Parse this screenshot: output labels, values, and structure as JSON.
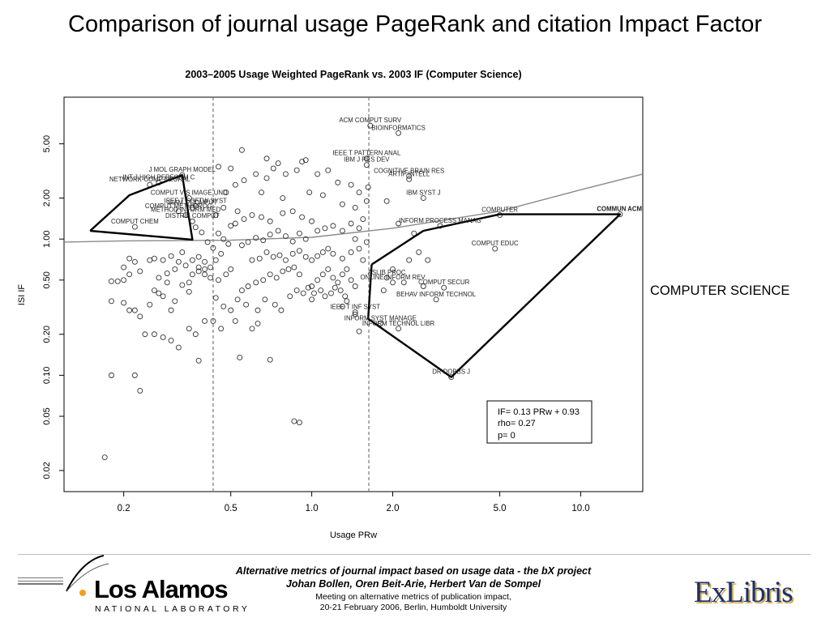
{
  "slide": {
    "title": "Comparison of journal usage PageRank and citation Impact Factor",
    "side_label": "COMPUTER SCIENCE"
  },
  "footer": {
    "title_line1": "Alternative metrics of journal impact based on usage data - the bX project",
    "authors": "Johan Bollen, Oren Beit-Arie, Herbert Van de Sompel",
    "meeting_line1": "Meeting on alternative metrics of publication impact,",
    "meeting_line2": "20-21 February 2006, Berlin, Humboldt University"
  },
  "logos": {
    "lanl_name": "Los Alamos",
    "lanl_sub": "NATIONAL LABORATORY",
    "exlibris": "ExLibris"
  },
  "colors": {
    "points": "#333333",
    "hull": "#000000",
    "fit_curve": "#8a8a8a",
    "dashed_lines": "#777777"
  },
  "chart_data": {
    "type": "scatter",
    "title": "2003–2005 Usage Weighted PageRank vs. 2003 IF (Computer Science)",
    "xlabel": "Usage PRw",
    "ylabel": "ISI IF",
    "x_scale": "log",
    "y_scale": "log",
    "xlim": [
      0.12,
      17
    ],
    "ylim": [
      0.014,
      11
    ],
    "x_ticks": [
      0.2,
      0.5,
      1.0,
      2.0,
      5.0,
      10.0
    ],
    "x_tick_labels": [
      "0.2",
      "0.5",
      "1.0",
      "2.0",
      "5.0",
      "10.0"
    ],
    "y_ticks": [
      0.02,
      0.05,
      0.1,
      0.2,
      0.5,
      1.0,
      2.0,
      5.0
    ],
    "y_tick_labels": [
      "0.02",
      "0.05",
      "0.10",
      "0.20",
      "0.50",
      "1.00",
      "2.00",
      "5.00"
    ],
    "vlines": [
      0.43,
      1.63
    ],
    "fit_line_points": [
      [
        0.12,
        0.95
      ],
      [
        0.2,
        0.97
      ],
      [
        0.5,
        0.98
      ],
      [
        1.0,
        1.03
      ],
      [
        2.0,
        1.2
      ],
      [
        5.0,
        1.6
      ],
      [
        10.0,
        2.3
      ],
      [
        17.0,
        3.0
      ]
    ],
    "stats_box": [
      "IF= 0.13 PRw +  0.93",
      "rho= 0.27",
      "p= 0"
    ],
    "hull_low": [
      [
        0.15,
        1.15
      ],
      [
        0.21,
        2.1
      ],
      [
        0.33,
        2.95
      ],
      [
        0.36,
        0.99
      ],
      [
        0.15,
        1.15
      ]
    ],
    "hull_high": [
      [
        1.67,
        0.65
      ],
      [
        2.6,
        1.15
      ],
      [
        5.0,
        1.52
      ],
      [
        14.0,
        1.52
      ],
      [
        3.3,
        0.097
      ],
      [
        1.62,
        0.26
      ],
      [
        1.67,
        0.65
      ]
    ],
    "labeled_points": [
      {
        "label": "ACM COMPUT SURV",
        "x": 1.65,
        "y": 6.8
      },
      {
        "label": "BIOINFORMATICS",
        "x": 2.1,
        "y": 6.0
      },
      {
        "label": "IEEE T PATTERN ANAL",
        "x": 1.6,
        "y": 3.9
      },
      {
        "label": "IBM J RES DEV",
        "x": 1.6,
        "y": 3.5
      },
      {
        "label": "COGNITIVE BRAIN RES",
        "x": 2.3,
        "y": 2.9
      },
      {
        "label": "ARTIF INTELL",
        "x": 2.3,
        "y": 2.75
      },
      {
        "label": "IBM SYST J",
        "x": 2.6,
        "y": 2.0
      },
      {
        "label": "COMPUTER",
        "x": 5.0,
        "y": 1.5
      },
      {
        "label": "COMMUN ACM",
        "x": 14.0,
        "y": 1.52
      },
      {
        "label": "INFORM PROCESS MANAG",
        "x": 3.0,
        "y": 1.25
      },
      {
        "label": "COMPUT EDUC",
        "x": 4.8,
        "y": 0.85
      },
      {
        "label": "ASLIB PROC",
        "x": 1.9,
        "y": 0.52
      },
      {
        "label": "ONLINE INFORM REV",
        "x": 2.0,
        "y": 0.48
      },
      {
        "label": "COMPUT SECUR",
        "x": 3.1,
        "y": 0.44
      },
      {
        "label": "BEHAV INFORM TECHNOL",
        "x": 2.9,
        "y": 0.36
      },
      {
        "label": "IEEE T INF SYST",
        "x": 1.45,
        "y": 0.29
      },
      {
        "label": "INFORM SYST MANAGE",
        "x": 1.8,
        "y": 0.24
      },
      {
        "label": "INFORM TECHNOL LIBR",
        "x": 2.1,
        "y": 0.22
      },
      {
        "label": "DR DOBBS J",
        "x": 3.3,
        "y": 0.097
      },
      {
        "label": "J MOL GRAPH MODEL",
        "x": 0.33,
        "y": 2.95
      },
      {
        "label": "INT J HIGH PERFORM C",
        "x": 0.27,
        "y": 2.6
      },
      {
        "label": "NETWORK-COMP NEURAL",
        "x": 0.25,
        "y": 2.5
      },
      {
        "label": "COMPUT VIS IMAGE UND",
        "x": 0.35,
        "y": 2.0
      },
      {
        "label": "IEEE T SOFTW SYST",
        "x": 0.37,
        "y": 1.75
      },
      {
        "label": "SIAM J COMPUT",
        "x": 0.36,
        "y": 1.7
      },
      {
        "label": "COMPUT METH PROG",
        "x": 0.32,
        "y": 1.6
      },
      {
        "label": "METHOD INFORM MED",
        "x": 0.34,
        "y": 1.5
      },
      {
        "label": "DISTRIB COMPUT",
        "x": 0.36,
        "y": 1.35
      },
      {
        "label": "COMPUT CHEM",
        "x": 0.22,
        "y": 1.23
      }
    ],
    "other_points": [
      [
        0.17,
        0.025
      ],
      [
        0.18,
        0.49
      ],
      [
        0.19,
        0.49
      ],
      [
        0.2,
        0.5
      ],
      [
        0.21,
        0.72
      ],
      [
        0.22,
        0.68
      ],
      [
        0.2,
        0.62
      ],
      [
        0.21,
        0.55
      ],
      [
        0.23,
        0.58
      ],
      [
        0.18,
        0.35
      ],
      [
        0.2,
        0.34
      ],
      [
        0.21,
        0.3
      ],
      [
        0.22,
        0.3
      ],
      [
        0.23,
        0.27
      ],
      [
        0.25,
        0.33
      ],
      [
        0.26,
        0.42
      ],
      [
        0.27,
        0.4
      ],
      [
        0.28,
        0.38
      ],
      [
        0.3,
        0.3
      ],
      [
        0.31,
        0.35
      ],
      [
        0.29,
        0.48
      ],
      [
        0.33,
        0.46
      ],
      [
        0.35,
        0.48
      ],
      [
        0.36,
        0.55
      ],
      [
        0.38,
        0.58
      ],
      [
        0.4,
        0.6
      ],
      [
        0.42,
        0.52
      ],
      [
        0.45,
        0.5
      ],
      [
        0.48,
        0.55
      ],
      [
        0.5,
        0.6
      ],
      [
        0.26,
        0.72
      ],
      [
        0.28,
        0.7
      ],
      [
        0.3,
        0.75
      ],
      [
        0.32,
        0.68
      ],
      [
        0.34,
        0.64
      ],
      [
        0.36,
        0.7
      ],
      [
        0.38,
        0.62
      ],
      [
        0.4,
        0.68
      ],
      [
        0.44,
        0.7
      ],
      [
        0.46,
        0.78
      ],
      [
        0.24,
        0.2
      ],
      [
        0.26,
        0.2
      ],
      [
        0.28,
        0.19
      ],
      [
        0.3,
        0.18
      ],
      [
        0.32,
        0.16
      ],
      [
        0.35,
        0.22
      ],
      [
        0.37,
        0.2
      ],
      [
        0.4,
        0.25
      ],
      [
        0.43,
        0.25
      ],
      [
        0.46,
        0.22
      ],
      [
        0.18,
        0.1
      ],
      [
        0.22,
        0.1
      ],
      [
        0.23,
        0.077
      ],
      [
        0.38,
        0.128
      ],
      [
        0.52,
        0.25
      ],
      [
        0.54,
        0.135
      ],
      [
        0.6,
        0.22
      ],
      [
        0.63,
        0.24
      ],
      [
        0.7,
        0.13
      ],
      [
        0.86,
        0.046
      ],
      [
        0.55,
        0.42
      ],
      [
        0.58,
        0.45
      ],
      [
        0.62,
        0.48
      ],
      [
        0.66,
        0.5
      ],
      [
        0.7,
        0.55
      ],
      [
        0.74,
        0.52
      ],
      [
        0.78,
        0.58
      ],
      [
        0.82,
        0.6
      ],
      [
        0.86,
        0.62
      ],
      [
        0.9,
        0.55
      ],
      [
        0.6,
        0.7
      ],
      [
        0.64,
        0.72
      ],
      [
        0.68,
        0.8
      ],
      [
        0.72,
        0.74
      ],
      [
        0.76,
        0.76
      ],
      [
        0.8,
        0.7
      ],
      [
        0.85,
        0.78
      ],
      [
        0.9,
        0.82
      ],
      [
        0.95,
        0.74
      ],
      [
        1.0,
        0.7
      ],
      [
        0.55,
        0.9
      ],
      [
        0.58,
        0.95
      ],
      [
        0.62,
        1.02
      ],
      [
        0.66,
        0.98
      ],
      [
        0.7,
        1.08
      ],
      [
        0.75,
        1.15
      ],
      [
        0.8,
        1.05
      ],
      [
        0.85,
        0.96
      ],
      [
        0.9,
        1.1
      ],
      [
        0.95,
        1.0
      ],
      [
        0.5,
        1.25
      ],
      [
        0.52,
        1.3
      ],
      [
        0.56,
        1.4
      ],
      [
        0.6,
        1.5
      ],
      [
        0.65,
        1.45
      ],
      [
        0.7,
        1.35
      ],
      [
        0.78,
        1.55
      ],
      [
        0.85,
        1.6
      ],
      [
        0.92,
        1.45
      ],
      [
        1.0,
        1.35
      ],
      [
        0.48,
        2.2
      ],
      [
        0.52,
        2.5
      ],
      [
        0.56,
        2.7
      ],
      [
        0.62,
        3.0
      ],
      [
        0.68,
        2.8
      ],
      [
        0.72,
        3.3
      ],
      [
        0.8,
        3.0
      ],
      [
        0.88,
        3.2
      ],
      [
        0.95,
        3.8
      ],
      [
        1.05,
        3.0
      ],
      [
        0.55,
        4.5
      ],
      [
        0.68,
        3.9
      ],
      [
        0.75,
        3.6
      ],
      [
        0.92,
        3.7
      ],
      [
        0.45,
        3.4
      ],
      [
        0.5,
        3.3
      ],
      [
        0.65,
        2.2
      ],
      [
        0.78,
        2.0
      ],
      [
        0.98,
        2.2
      ],
      [
        1.1,
        2.1
      ],
      [
        1.0,
        0.45
      ],
      [
        1.05,
        0.5
      ],
      [
        1.1,
        0.55
      ],
      [
        1.15,
        0.6
      ],
      [
        1.2,
        0.52
      ],
      [
        1.25,
        0.48
      ],
      [
        1.3,
        0.55
      ],
      [
        1.35,
        0.6
      ],
      [
        1.4,
        0.5
      ],
      [
        1.45,
        0.45
      ],
      [
        1.05,
        0.75
      ],
      [
        1.1,
        0.8
      ],
      [
        1.15,
        0.85
      ],
      [
        1.2,
        0.78
      ],
      [
        1.3,
        0.72
      ],
      [
        1.4,
        0.8
      ],
      [
        1.5,
        0.85
      ],
      [
        1.55,
        0.7
      ],
      [
        1.6,
        0.95
      ],
      [
        1.45,
        1.0
      ],
      [
        1.05,
        1.15
      ],
      [
        1.12,
        1.2
      ],
      [
        1.2,
        1.25
      ],
      [
        1.3,
        1.15
      ],
      [
        1.4,
        1.3
      ],
      [
        1.5,
        1.2
      ],
      [
        1.55,
        1.4
      ],
      [
        1.3,
        1.8
      ],
      [
        1.45,
        1.7
      ],
      [
        1.6,
        1.9
      ],
      [
        1.15,
        3.2
      ],
      [
        1.25,
        2.6
      ],
      [
        1.4,
        2.5
      ],
      [
        1.5,
        2.2
      ],
      [
        1.62,
        2.4
      ],
      [
        1.3,
        0.32
      ],
      [
        1.35,
        0.35
      ],
      [
        1.45,
        0.28
      ],
      [
        1.5,
        0.21
      ],
      [
        1.0,
        0.36
      ],
      [
        1.9,
        1.9
      ],
      [
        2.1,
        1.3
      ],
      [
        2.4,
        1.1
      ],
      [
        2.5,
        0.8
      ],
      [
        2.3,
        0.7
      ],
      [
        2.0,
        0.6
      ],
      [
        2.6,
        0.45
      ],
      [
        2.2,
        0.48
      ],
      [
        1.85,
        0.42
      ],
      [
        2.7,
        0.7
      ],
      [
        0.9,
        0.045
      ],
      [
        0.4,
        0.55
      ],
      [
        0.42,
        0.62
      ],
      [
        0.38,
        0.74
      ],
      [
        0.33,
        0.8
      ],
      [
        0.31,
        0.6
      ],
      [
        0.27,
        0.52
      ],
      [
        0.25,
        0.7
      ],
      [
        0.29,
        0.56
      ],
      [
        0.35,
        0.41
      ],
      [
        0.44,
        0.37
      ],
      [
        0.47,
        0.32
      ],
      [
        0.5,
        0.3
      ],
      [
        0.53,
        0.36
      ],
      [
        0.57,
        0.33
      ],
      [
        0.63,
        0.3
      ],
      [
        0.67,
        0.36
      ],
      [
        0.73,
        0.33
      ],
      [
        0.77,
        0.3
      ],
      [
        0.83,
        0.38
      ],
      [
        0.88,
        0.42
      ],
      [
        0.93,
        0.4
      ],
      [
        0.97,
        0.44
      ],
      [
        1.02,
        0.4
      ],
      [
        1.08,
        0.42
      ],
      [
        1.12,
        0.38
      ],
      [
        1.18,
        0.4
      ],
      [
        1.22,
        0.44
      ],
      [
        1.28,
        0.42
      ],
      [
        1.33,
        0.38
      ],
      [
        0.45,
        1.1
      ],
      [
        0.47,
        1.0
      ],
      [
        0.49,
        0.92
      ],
      [
        0.43,
        0.86
      ],
      [
        0.41,
        0.95
      ],
      [
        0.39,
        1.12
      ],
      [
        0.37,
        1.22
      ],
      [
        0.44,
        1.5
      ],
      [
        0.47,
        1.7
      ],
      [
        0.53,
        1.6
      ]
    ]
  }
}
